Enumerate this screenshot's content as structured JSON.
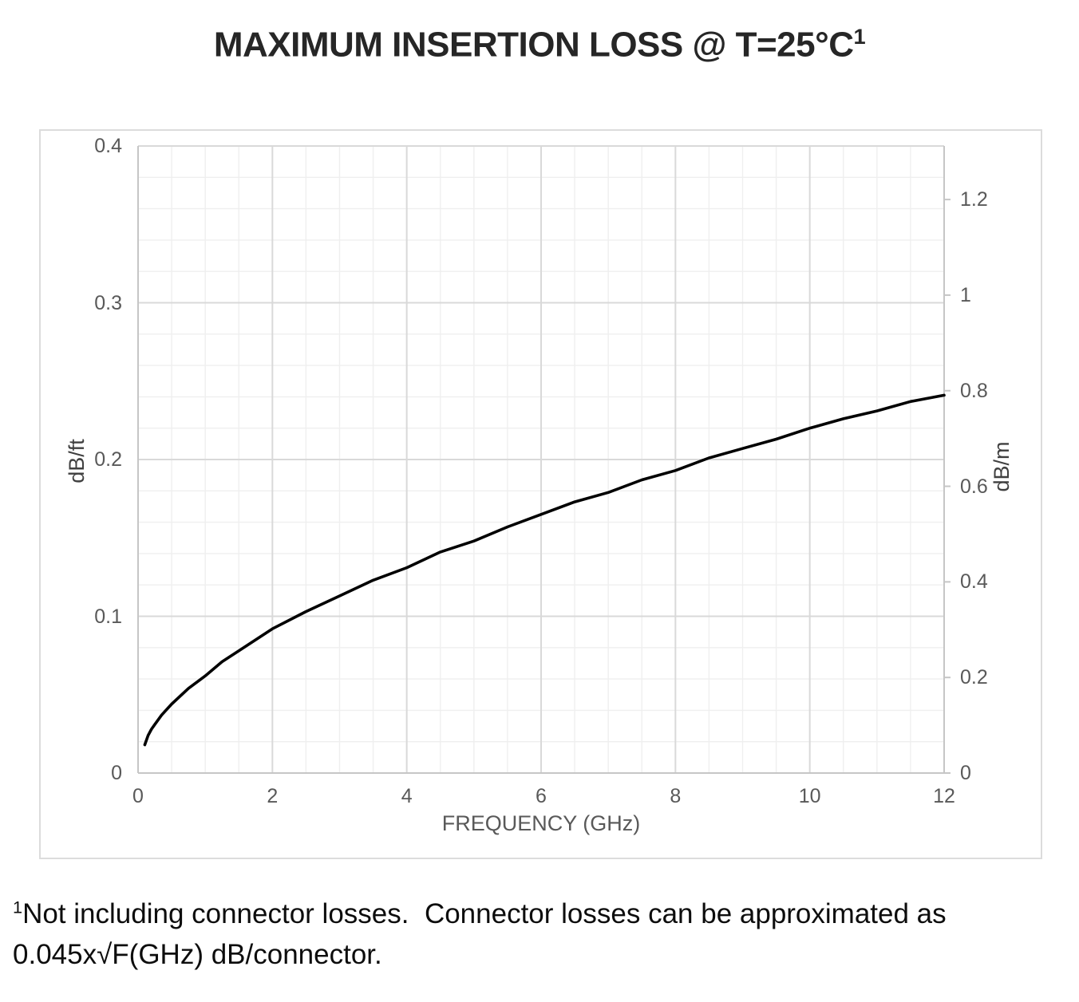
{
  "title": {
    "main": "MAXIMUM INSERTION LOSS @ T=25°C",
    "superscript": "1"
  },
  "footnote": {
    "marker": "1",
    "text": "Not including connector losses.  Connector losses can be approximated as\n0.045x√F(GHz) dB/connector."
  },
  "colors": {
    "grid_major": "#d9d9d9",
    "grid_minor": "#efefef",
    "axis_line": "#c6c6c6",
    "tick_label": "#595959",
    "curve": "#000000",
    "chart_border": "#dcdcdc"
  },
  "chart_data": {
    "type": "line",
    "title": "MAXIMUM INSERTION LOSS @ T=25°C¹",
    "grid": "major and minor, on",
    "legend": "none",
    "x_axis": {
      "label": "FREQUENCY (GHz)",
      "range": [
        0,
        12
      ],
      "minor_step": 0.5,
      "major_ticks": [
        {
          "value": 0,
          "label": "0"
        },
        {
          "value": 2,
          "label": "2"
        },
        {
          "value": 4,
          "label": "4"
        },
        {
          "value": 6,
          "label": "6"
        },
        {
          "value": 8,
          "label": "8"
        },
        {
          "value": 10,
          "label": "10"
        },
        {
          "value": 12,
          "label": "12"
        }
      ]
    },
    "y_left_axis": {
      "label": "dB/ft",
      "range": [
        0,
        0.4
      ],
      "minor_step": 0.02,
      "major_ticks": [
        {
          "value": 0.4,
          "label": "0.4"
        },
        {
          "value": 0.3,
          "label": "0.3"
        },
        {
          "value": 0.2,
          "label": "0.2"
        },
        {
          "value": 0.1,
          "label": "0.1"
        },
        {
          "value": 0,
          "label": "0"
        }
      ]
    },
    "y_right_axis": {
      "label": "dB/m",
      "range": [
        0,
        1.312
      ],
      "ticks": [
        {
          "value": 1.2,
          "label": "1.2"
        },
        {
          "value": 1,
          "label": "1"
        },
        {
          "value": 0.8,
          "label": "0.8"
        },
        {
          "value": 0.6,
          "label": "0.6"
        },
        {
          "value": 0.4,
          "label": "0.4"
        },
        {
          "value": 0.2,
          "label": "0.2"
        },
        {
          "value": 0,
          "label": "0"
        }
      ]
    },
    "series": [
      {
        "name": "maximum insertion loss",
        "units": "dB/ft vs GHz",
        "color": "#000000",
        "points": [
          [
            0.1,
            0.018
          ],
          [
            0.15,
            0.024
          ],
          [
            0.2,
            0.028
          ],
          [
            0.25,
            0.031
          ],
          [
            0.35,
            0.037
          ],
          [
            0.5,
            0.044
          ],
          [
            0.75,
            0.054
          ],
          [
            1,
            0.062
          ],
          [
            1.25,
            0.071
          ],
          [
            1.5,
            0.078
          ],
          [
            2,
            0.092
          ],
          [
            2.5,
            0.103
          ],
          [
            3,
            0.113
          ],
          [
            3.5,
            0.123
          ],
          [
            4,
            0.131
          ],
          [
            4.5,
            0.141
          ],
          [
            5,
            0.148
          ],
          [
            5.5,
            0.157
          ],
          [
            6,
            0.165
          ],
          [
            6.5,
            0.173
          ],
          [
            7,
            0.179
          ],
          [
            7.5,
            0.187
          ],
          [
            8,
            0.193
          ],
          [
            8.5,
            0.201
          ],
          [
            9,
            0.207
          ],
          [
            9.5,
            0.213
          ],
          [
            10,
            0.22
          ],
          [
            10.5,
            0.226
          ],
          [
            11,
            0.231
          ],
          [
            11.5,
            0.237
          ],
          [
            12,
            0.241
          ]
        ]
      }
    ]
  }
}
